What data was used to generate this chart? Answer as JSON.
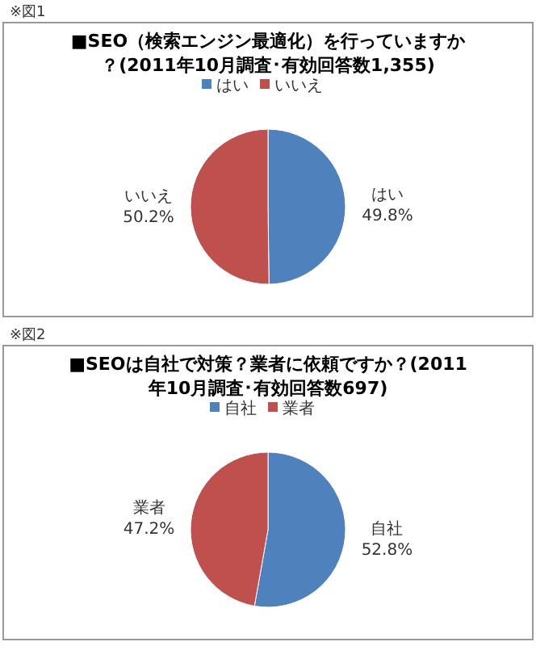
{
  "chart_data": [
    {
      "type": "pie",
      "title": "■SEO（検索エンジン最適化）を行っていますか？(2011年10月調査･有効回答数1,355)",
      "annotations": [
        "※図1"
      ],
      "categories": [
        "はい",
        "いいえ"
      ],
      "values": [
        49.8,
        50.2
      ],
      "value_labels": [
        "49.8%",
        "50.2%"
      ],
      "colors": [
        "#4f81bd",
        "#c0504d"
      ],
      "legend": "top"
    },
    {
      "type": "pie",
      "title": "■SEOは自社で対策？業者に依頼ですか？(2011年10月調査･有効回答数697)",
      "annotations": [
        "※図2"
      ],
      "categories": [
        "自社",
        "業者"
      ],
      "values": [
        52.8,
        47.2
      ],
      "value_labels": [
        "52.8%",
        "47.2%"
      ],
      "colors": [
        "#4f81bd",
        "#c0504d"
      ],
      "legend": "top"
    }
  ]
}
